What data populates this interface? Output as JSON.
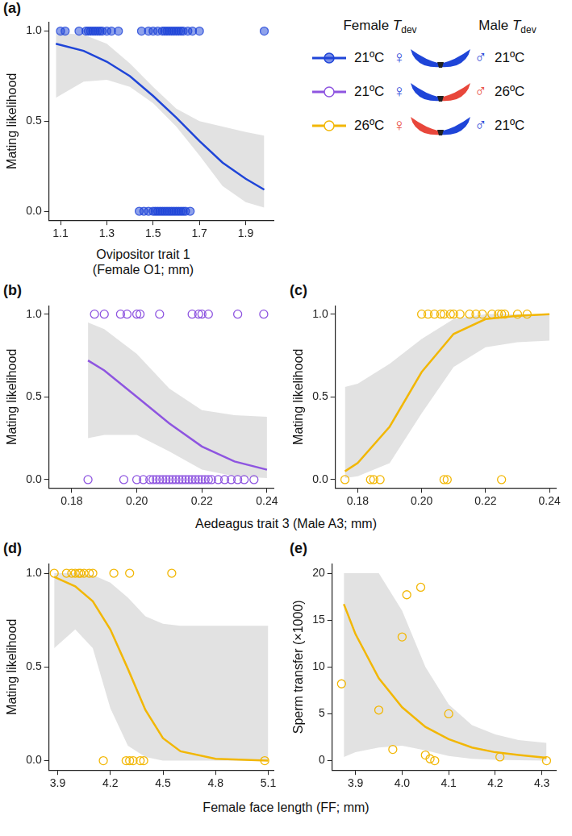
{
  "chart_data": [
    {
      "type": "scatter",
      "panel": "(a)",
      "xlabel": "Ovipositor trait 1\n(Female O1; mm)",
      "ylabel": "Mating likelihood",
      "color": "#1f45d8",
      "marker": "circle",
      "x": [
        1.1,
        1.12,
        1.18,
        1.21,
        1.22,
        1.23,
        1.24,
        1.25,
        1.26,
        1.27,
        1.28,
        1.3,
        1.32,
        1.35,
        1.45,
        1.48,
        1.5,
        1.52,
        1.54,
        1.55,
        1.56,
        1.57,
        1.58,
        1.59,
        1.6,
        1.61,
        1.62,
        1.63,
        1.65,
        1.67,
        1.7,
        1.98,
        1.44,
        1.46,
        1.48,
        1.5,
        1.51,
        1.52,
        1.53,
        1.54,
        1.55,
        1.56,
        1.57,
        1.58,
        1.59,
        1.6,
        1.61,
        1.62,
        1.63,
        1.64,
        1.66
      ],
      "values": [
        1,
        1,
        1,
        1,
        1,
        1,
        1,
        1,
        1,
        1,
        1,
        1,
        1,
        1,
        1,
        1,
        1,
        1,
        1,
        1,
        1,
        1,
        1,
        1,
        1,
        1,
        1,
        1,
        1,
        1,
        1,
        1,
        0,
        0,
        0,
        0,
        0,
        0,
        0,
        0,
        0,
        0,
        0,
        0,
        0,
        0,
        0,
        0,
        0,
        0,
        0
      ],
      "fit_x": [
        1.08,
        1.2,
        1.3,
        1.4,
        1.5,
        1.6,
        1.7,
        1.8,
        1.9,
        1.98
      ],
      "fit_values": [
        0.93,
        0.89,
        0.83,
        0.75,
        0.64,
        0.52,
        0.39,
        0.27,
        0.18,
        0.12
      ],
      "ci_lower": [
        0.63,
        0.72,
        0.73,
        0.69,
        0.6,
        0.47,
        0.31,
        0.14,
        0.05,
        0.02
      ],
      "ci_upper": [
        0.99,
        0.98,
        0.93,
        0.82,
        0.69,
        0.57,
        0.5,
        0.47,
        0.44,
        0.42
      ],
      "xlim": [
        1.05,
        2.02
      ],
      "xticks": [
        1.1,
        1.3,
        1.5,
        1.7,
        1.9
      ],
      "ylim": [
        -0.05,
        1.05
      ],
      "yticks": [
        {
          "value": 0,
          "label": "0.0"
        },
        {
          "value": 0.5,
          "label": "0.5"
        },
        {
          "value": 1,
          "label": "1.0"
        }
      ],
      "grid": false
    },
    {
      "type": "scatter",
      "panel": "(b)",
      "xlabel": "Aedeagus trait 3 (Male A3; mm)",
      "ylabel": "Mating likelihood",
      "color": "#8e55e0",
      "marker": "open circle",
      "x": [
        0.187,
        0.19,
        0.195,
        0.197,
        0.2,
        0.201,
        0.207,
        0.217,
        0.219,
        0.22,
        0.222,
        0.231,
        0.239,
        0.185,
        0.196,
        0.2,
        0.202,
        0.204,
        0.205,
        0.206,
        0.207,
        0.208,
        0.209,
        0.21,
        0.211,
        0.212,
        0.213,
        0.214,
        0.215,
        0.216,
        0.217,
        0.218,
        0.219,
        0.22,
        0.221,
        0.222,
        0.223,
        0.225,
        0.227,
        0.229,
        0.231,
        0.233,
        0.236
      ],
      "values": [
        1,
        1,
        1,
        1,
        1,
        1,
        1,
        1,
        1,
        1,
        1,
        1,
        1,
        0,
        0,
        0,
        0,
        0,
        0,
        0,
        0,
        0,
        0,
        0,
        0,
        0,
        0,
        0,
        0,
        0,
        0,
        0,
        0,
        0,
        0,
        0,
        0,
        0,
        0,
        0,
        0,
        0,
        0
      ],
      "fit_x": [
        0.185,
        0.19,
        0.2,
        0.21,
        0.22,
        0.23,
        0.24
      ],
      "fit_values": [
        0.72,
        0.66,
        0.5,
        0.34,
        0.2,
        0.11,
        0.06
      ],
      "ci_lower": [
        0.25,
        0.27,
        0.27,
        0.17,
        0.06,
        0.02,
        0.01
      ],
      "ci_upper": [
        0.95,
        0.91,
        0.76,
        0.55,
        0.42,
        0.39,
        0.38
      ],
      "xlim": [
        0.173,
        0.242
      ],
      "xticks": [
        0.18,
        {
          "value": 0.2,
          "label": "0.20"
        },
        0.22,
        0.24
      ],
      "ylim": [
        -0.05,
        1.05
      ],
      "yticks": [
        {
          "value": 0,
          "label": "0.0"
        },
        {
          "value": 0.5,
          "label": "0.5"
        },
        {
          "value": 1,
          "label": "1.0"
        }
      ],
      "grid": false
    },
    {
      "type": "scatter",
      "panel": "(c)",
      "ylabel": "Mating likelihood",
      "color": "#f2b705",
      "marker": "open circle",
      "x": [
        0.2,
        0.202,
        0.204,
        0.206,
        0.207,
        0.209,
        0.21,
        0.212,
        0.215,
        0.217,
        0.219,
        0.222,
        0.224,
        0.225,
        0.226,
        0.23,
        0.233,
        0.176,
        0.184,
        0.185,
        0.187,
        0.207,
        0.208,
        0.225
      ],
      "values": [
        1,
        1,
        1,
        1,
        1,
        1,
        1,
        1,
        1,
        1,
        1,
        1,
        1,
        1,
        1,
        1,
        1,
        0,
        0,
        0,
        0,
        0,
        0,
        0
      ],
      "fit_x": [
        0.176,
        0.18,
        0.19,
        0.2,
        0.21,
        0.22,
        0.23,
        0.24
      ],
      "fit_values": [
        0.05,
        0.1,
        0.32,
        0.65,
        0.88,
        0.97,
        0.99,
        1.0
      ],
      "ci_lower": [
        0.01,
        0.02,
        0.1,
        0.4,
        0.68,
        0.8,
        0.83,
        0.84
      ],
      "ci_upper": [
        0.56,
        0.58,
        0.7,
        0.85,
        0.97,
        1.0,
        1.0,
        1.0
      ],
      "xlim": [
        0.173,
        0.242
      ],
      "xticks": [
        0.18,
        {
          "value": 0.2,
          "label": "0.20"
        },
        0.22,
        0.24
      ],
      "ylim": [
        -0.05,
        1.05
      ],
      "yticks": [
        {
          "value": 0,
          "label": "0.0"
        },
        {
          "value": 0.5,
          "label": "0.5"
        },
        {
          "value": 1,
          "label": "1.0"
        }
      ],
      "grid": false
    },
    {
      "type": "scatter",
      "panel": "(d)",
      "xlabel": "Female face length (FF; mm)",
      "ylabel": "Mating likelihood",
      "color": "#f2b705",
      "marker": "open circle",
      "x": [
        3.88,
        3.95,
        3.98,
        4.0,
        4.02,
        4.03,
        4.05,
        4.08,
        4.1,
        4.22,
        4.31,
        4.55,
        4.16,
        4.29,
        4.31,
        4.33,
        4.37,
        4.39,
        5.08
      ],
      "values": [
        1,
        1,
        1,
        1,
        1,
        1,
        1,
        1,
        1,
        1,
        1,
        1,
        0,
        0,
        0,
        0,
        0,
        0,
        0
      ],
      "fit_x": [
        3.88,
        4.0,
        4.1,
        4.2,
        4.3,
        4.4,
        4.5,
        4.6,
        4.8,
        5.1
      ],
      "fit_values": [
        0.98,
        0.93,
        0.85,
        0.7,
        0.49,
        0.27,
        0.12,
        0.05,
        0.01,
        0.0
      ],
      "ci_lower": [
        0.6,
        0.7,
        0.6,
        0.28,
        0.08,
        0.02,
        0.0,
        0.0,
        0.0,
        0.0
      ],
      "ci_upper": [
        1.0,
        1.0,
        0.99,
        0.95,
        0.87,
        0.77,
        0.73,
        0.72,
        0.72,
        0.72
      ],
      "xlim": [
        3.85,
        5.13
      ],
      "xticks": [
        3.9,
        4.2,
        4.5,
        4.8,
        5.1
      ],
      "ylim": [
        -0.05,
        1.05
      ],
      "yticks": [
        {
          "value": 0,
          "label": "0.0"
        },
        {
          "value": 0.5,
          "label": "0.5"
        },
        {
          "value": 1,
          "label": "1.0"
        }
      ],
      "grid": false
    },
    {
      "type": "scatter",
      "panel": "(e)",
      "ylabel": "Sperm transfer (×1000)",
      "color": "#f2b705",
      "marker": "open circle",
      "x": [
        3.87,
        3.95,
        3.98,
        4.0,
        4.01,
        4.04,
        4.05,
        4.06,
        4.07,
        4.1,
        4.21,
        4.31
      ],
      "values": [
        8.2,
        5.4,
        1.2,
        13.2,
        17.7,
        18.5,
        0.6,
        0.2,
        0.0,
        5.0,
        0.4,
        0.0
      ],
      "fit_x": [
        3.875,
        3.9,
        3.95,
        4.0,
        4.05,
        4.1,
        4.15,
        4.2,
        4.25,
        4.31
      ],
      "fit_values": [
        16.7,
        13.5,
        8.8,
        5.7,
        3.6,
        2.3,
        1.4,
        0.9,
        0.6,
        0.3
      ],
      "ci_lower": [
        0.4,
        0.9,
        1.4,
        1.6,
        1.1,
        0.5,
        0.2,
        0.1,
        0.05,
        0.0
      ],
      "ci_upper": [
        20,
        20,
        20,
        16,
        10,
        6,
        3.8,
        2.8,
        2.2,
        1.9
      ],
      "xlim": [
        3.85,
        4.33
      ],
      "xticks": [
        3.9,
        {
          "value": 4,
          "label": "4.0"
        },
        4.1,
        4.2,
        4.3
      ],
      "ylim": [
        -1,
        21
      ],
      "yticks": [
        0,
        5,
        10,
        15,
        20
      ],
      "grid": false
    }
  ],
  "key": {
    "headers": [
      {
        "text": "Female",
        "symbol": "T",
        "subscript": "dev"
      },
      {
        "text": "Male",
        "symbol": "T",
        "subscript": "dev"
      }
    ],
    "female_symbol": "♀",
    "male_symbol": "♂",
    "temp_colors": {
      "21ºC": "#1f45d8",
      "26ºC": "#e8473b"
    },
    "rows": [
      {
        "female": "21ºC",
        "male": "21ºC",
        "color": "#1f45d8",
        "marker": "circle"
      },
      {
        "female": "21ºC",
        "male": "26ºC",
        "color": "#8e55e0",
        "marker": "open circle"
      },
      {
        "female": "26ºC",
        "male": "21ºC",
        "color": "#f2b705",
        "marker": "open circle"
      }
    ]
  }
}
